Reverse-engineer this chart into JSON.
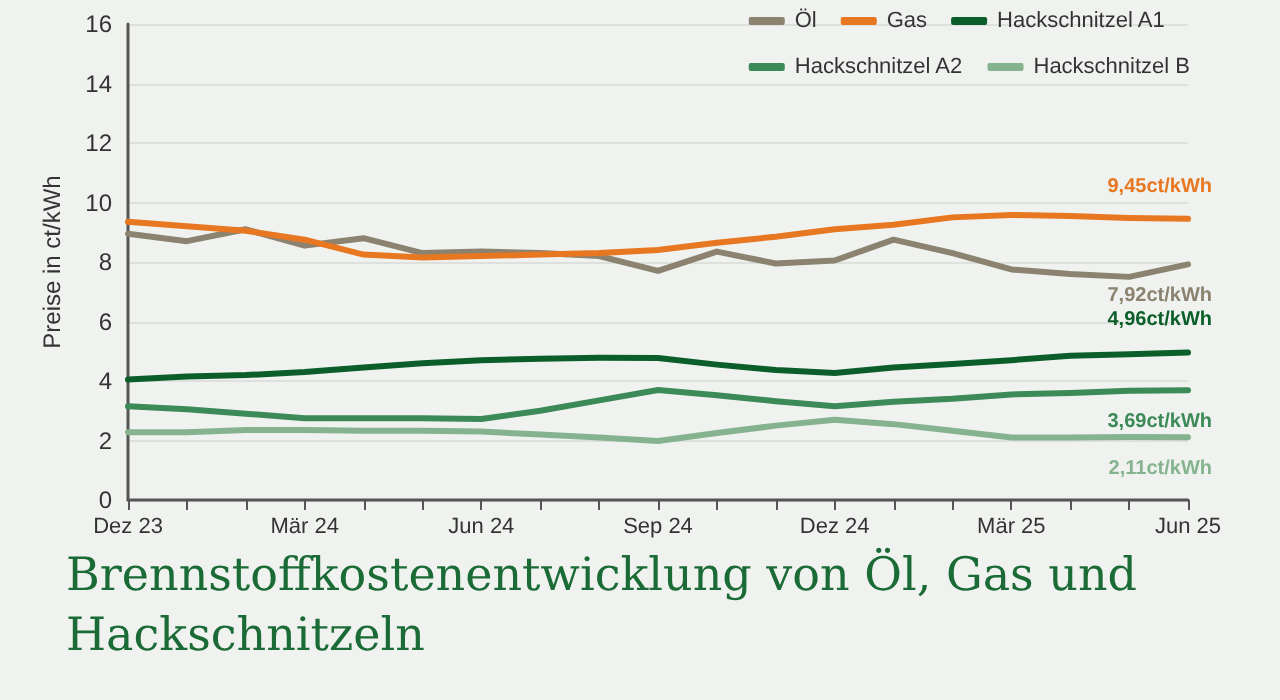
{
  "chart_data": {
    "type": "line",
    "title": "Brennstoffkostenentwicklung von Öl, Gas und Hackschnitzeln",
    "ylabel": "Preise in ct/kWh",
    "categories": [
      "Dez 23",
      null,
      null,
      "Mär 24",
      null,
      null,
      "Jun 24",
      null,
      null,
      "Sep 24",
      null,
      null,
      "Dez 24",
      null,
      null,
      "Mär 25",
      null,
      null,
      "Jun 25"
    ],
    "series": [
      {
        "name": "Öl",
        "color": "#8b8270",
        "values": [
          8.95,
          8.7,
          9.1,
          8.55,
          8.8,
          8.3,
          8.35,
          8.3,
          8.2,
          7.7,
          8.35,
          7.95,
          8.05,
          8.75,
          8.3,
          7.75,
          7.6,
          7.5,
          7.92
        ],
        "value_labels": [
          null,
          null,
          null,
          null,
          null,
          null,
          null,
          null,
          null,
          null,
          null,
          null,
          null,
          null,
          null,
          null,
          null,
          null,
          "7,92ct/kWh"
        ]
      },
      {
        "name": "Gas",
        "color": "#e87722",
        "values": [
          9.35,
          9.2,
          9.05,
          8.75,
          8.25,
          8.15,
          8.2,
          8.25,
          8.3,
          8.4,
          8.65,
          8.85,
          9.1,
          9.25,
          9.5,
          9.58,
          9.55,
          9.48,
          9.45
        ],
        "value_labels": [
          null,
          null,
          null,
          null,
          null,
          null,
          null,
          null,
          null,
          null,
          null,
          null,
          null,
          null,
          null,
          null,
          null,
          null,
          "9,45ct/kWh"
        ]
      },
      {
        "name": "Hackschnitzel A1",
        "color": "#0b5e2a",
        "values": [
          4.05,
          4.15,
          4.2,
          4.3,
          4.45,
          4.6,
          4.7,
          4.75,
          4.78,
          4.77,
          4.55,
          4.37,
          4.27,
          4.45,
          4.57,
          4.7,
          4.85,
          4.9,
          4.96
        ],
        "value_labels": [
          null,
          null,
          null,
          null,
          null,
          null,
          null,
          null,
          null,
          null,
          null,
          null,
          null,
          null,
          null,
          null,
          null,
          null,
          "4,96ct/kWh"
        ]
      },
      {
        "name": "Hackschnitzel A2",
        "color": "#3c8a58",
        "values": [
          3.15,
          3.05,
          2.9,
          2.75,
          2.75,
          2.75,
          2.72,
          3.0,
          3.35,
          3.7,
          3.52,
          3.32,
          3.15,
          3.3,
          3.4,
          3.55,
          3.6,
          3.67,
          3.69
        ],
        "value_labels": [
          null,
          null,
          null,
          null,
          null,
          null,
          null,
          null,
          null,
          null,
          null,
          null,
          null,
          null,
          null,
          null,
          null,
          null,
          "3,69ct/kWh"
        ]
      },
      {
        "name": "Hackschnitzel B",
        "color": "#86b38f",
        "values": [
          2.28,
          2.28,
          2.35,
          2.35,
          2.33,
          2.33,
          2.3,
          2.2,
          2.1,
          1.98,
          2.25,
          2.5,
          2.7,
          2.55,
          2.33,
          2.1,
          2.1,
          2.12,
          2.11
        ],
        "value_labels": [
          null,
          null,
          null,
          null,
          null,
          null,
          null,
          null,
          null,
          null,
          null,
          null,
          null,
          null,
          null,
          null,
          null,
          null,
          "2,11ct/kWh"
        ]
      }
    ],
    "ylim": [
      0,
      16
    ],
    "yticks": [
      0,
      2,
      4,
      6,
      8,
      10,
      12,
      14,
      16
    ],
    "grid": "y",
    "legend": "top right",
    "marker": "none",
    "line_style": "solid"
  }
}
